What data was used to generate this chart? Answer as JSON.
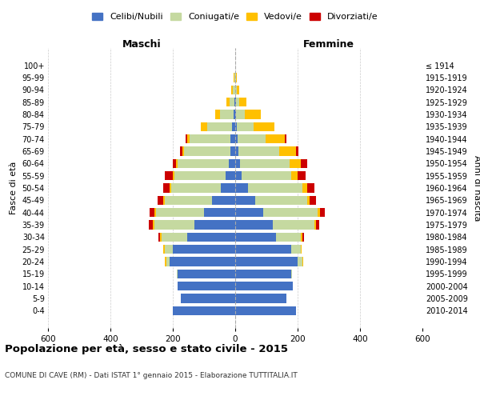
{
  "age_groups": [
    "0-4",
    "5-9",
    "10-14",
    "15-19",
    "20-24",
    "25-29",
    "30-34",
    "35-39",
    "40-44",
    "45-49",
    "50-54",
    "55-59",
    "60-64",
    "65-69",
    "70-74",
    "75-79",
    "80-84",
    "85-89",
    "90-94",
    "95-99",
    "100+"
  ],
  "birth_years": [
    "2010-2014",
    "2005-2009",
    "2000-2004",
    "1995-1999",
    "1990-1994",
    "1985-1989",
    "1980-1984",
    "1975-1979",
    "1970-1974",
    "1965-1969",
    "1960-1964",
    "1955-1959",
    "1950-1954",
    "1945-1949",
    "1940-1944",
    "1935-1939",
    "1930-1934",
    "1925-1929",
    "1920-1924",
    "1915-1919",
    "≤ 1914"
  ],
  "male": {
    "celibi": [
      200,
      175,
      185,
      185,
      210,
      200,
      155,
      130,
      100,
      75,
      45,
      30,
      20,
      15,
      15,
      10,
      5,
      2,
      0,
      0,
      0
    ],
    "coniugati": [
      0,
      0,
      0,
      2,
      10,
      25,
      80,
      130,
      155,
      150,
      160,
      165,
      165,
      150,
      130,
      80,
      45,
      15,
      8,
      2,
      0
    ],
    "vedovi": [
      0,
      0,
      0,
      0,
      5,
      5,
      5,
      5,
      5,
      5,
      5,
      5,
      5,
      5,
      10,
      20,
      15,
      10,
      5,
      2,
      0
    ],
    "divorziati": [
      0,
      0,
      0,
      0,
      0,
      2,
      5,
      12,
      15,
      20,
      20,
      25,
      10,
      8,
      5,
      0,
      0,
      0,
      0,
      0,
      0
    ]
  },
  "female": {
    "nubili": [
      195,
      165,
      185,
      180,
      200,
      180,
      130,
      120,
      90,
      65,
      40,
      20,
      15,
      10,
      8,
      5,
      2,
      2,
      0,
      0,
      0
    ],
    "coniugate": [
      0,
      0,
      0,
      2,
      15,
      30,
      80,
      135,
      175,
      165,
      175,
      160,
      160,
      130,
      90,
      55,
      30,
      10,
      5,
      2,
      0
    ],
    "vedove": [
      0,
      0,
      0,
      0,
      2,
      2,
      5,
      5,
      8,
      8,
      15,
      20,
      35,
      55,
      60,
      65,
      50,
      25,
      8,
      3,
      0
    ],
    "divorziate": [
      0,
      0,
      0,
      0,
      0,
      2,
      5,
      10,
      15,
      20,
      25,
      25,
      20,
      8,
      5,
      0,
      0,
      0,
      0,
      0,
      0
    ]
  },
  "colors": {
    "celibi": "#4472C4",
    "coniugati": "#c5d9a0",
    "vedovi": "#ffc000",
    "divorziati": "#cc0000"
  },
  "xlim": 600,
  "title": "Popolazione per età, sesso e stato civile - 2015",
  "subtitle": "COMUNE DI CAVE (RM) - Dati ISTAT 1° gennaio 2015 - Elaborazione TUTTITALIA.IT",
  "ylabel_left": "Fasce di età",
  "ylabel_right": "Anni di nascita",
  "legend_labels": [
    "Celibi/Nubili",
    "Coniugati/e",
    "Vedovi/e",
    "Divorziati/e"
  ],
  "legend_colors": [
    "#4472C4",
    "#c5d9a0",
    "#ffc000",
    "#cc0000"
  ],
  "background_color": "#ffffff",
  "bar_height": 0.75
}
